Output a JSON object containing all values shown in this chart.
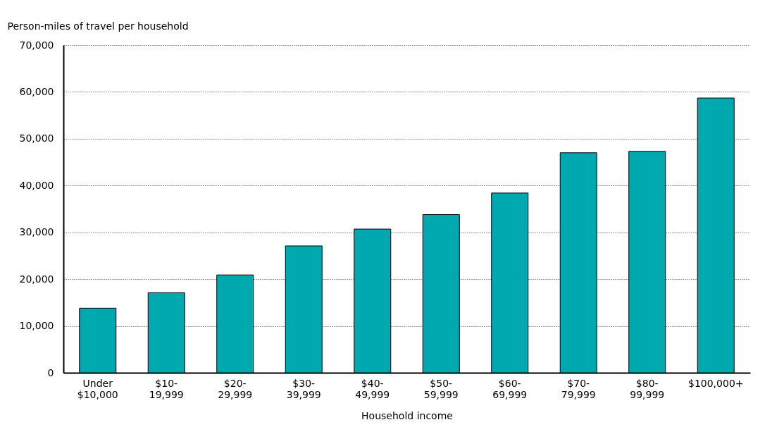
{
  "chart_data": {
    "type": "bar",
    "ylabel": "Person-miles of travel per household",
    "xlabel": "Household income",
    "categories": [
      "Under\n$10,000",
      "$10-\n19,999",
      "$20-\n29,999",
      "$30-\n39,999",
      "$40-\n49,999",
      "$50-\n59,999",
      "$60-\n69,999",
      "$70-\n79,999",
      "$80-\n99,999",
      "$100,000+"
    ],
    "values": [
      13800,
      17100,
      20900,
      27100,
      30700,
      33800,
      38400,
      47000,
      47300,
      58700
    ],
    "color": "#00a9b0",
    "ylim": [
      0,
      70000
    ],
    "yticks": [
      0,
      {
        "value": 10000,
        "label": "10,000"
      },
      {
        "value": 20000,
        "label": "20,000"
      },
      {
        "value": 30000,
        "label": "30,000"
      },
      {
        "value": 40000,
        "label": "40,000"
      },
      {
        "value": 50000,
        "label": "50,000"
      },
      {
        "value": 60000,
        "label": "60,000"
      },
      {
        "value": 70000,
        "label": "70,000"
      }
    ],
    "grid": "y"
  }
}
